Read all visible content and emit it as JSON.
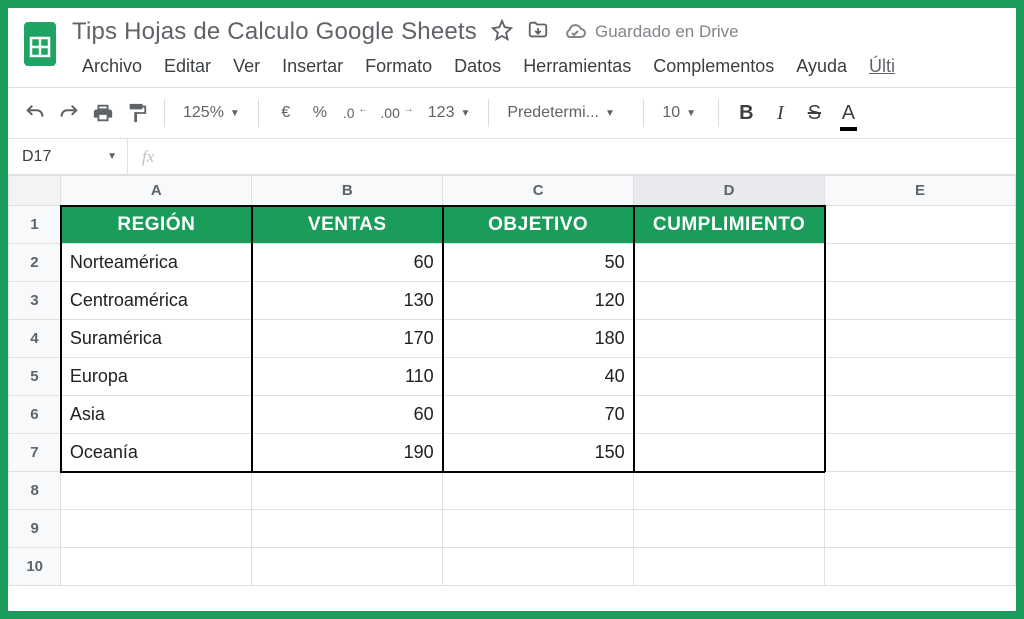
{
  "doc": {
    "title": "Tips Hojas de Calculo Google Sheets",
    "drive_status": "Guardado en Drive"
  },
  "menu": {
    "items": [
      "Archivo",
      "Editar",
      "Ver",
      "Insertar",
      "Formato",
      "Datos",
      "Herramientas",
      "Complementos",
      "Ayuda"
    ],
    "truncated": "Últi"
  },
  "toolbar": {
    "zoom": "125%",
    "currency": "€",
    "percent": "%",
    "dec_less": ".0",
    "dec_more": ".00",
    "more_formats": "123",
    "font": "Predetermi...",
    "font_size": "10",
    "bold": "B",
    "italic": "I",
    "strike": "S",
    "textcolor": "A"
  },
  "namebox": {
    "cell_ref": "D17",
    "fx_label": "fx"
  },
  "columns": [
    "A",
    "B",
    "C",
    "D",
    "E"
  ],
  "active_column_index": 3,
  "row_labels": [
    "1",
    "2",
    "3",
    "4",
    "5",
    "6",
    "7",
    "8",
    "9",
    "10"
  ],
  "data_table": {
    "header_bg": "#1a9c5a",
    "header_fg": "#ffffff",
    "border_color": "#000000",
    "headers": [
      "REGIÓN",
      "VENTAS",
      "OBJETIVO",
      "CUMPLIMIENTO"
    ],
    "rows": [
      {
        "region": "Norteamérica",
        "ventas": 60,
        "objetivo": 50,
        "cumplimiento": ""
      },
      {
        "region": "Centroamérica",
        "ventas": 130,
        "objetivo": 120,
        "cumplimiento": ""
      },
      {
        "region": "Suramérica",
        "ventas": 170,
        "objetivo": 180,
        "cumplimiento": ""
      },
      {
        "region": "Europa",
        "ventas": 110,
        "objetivo": 40,
        "cumplimiento": ""
      },
      {
        "region": "Asia",
        "ventas": 60,
        "objetivo": 70,
        "cumplimiento": ""
      },
      {
        "region": "Oceanía",
        "ventas": 190,
        "objetivo": 150,
        "cumplimiento": ""
      }
    ]
  }
}
